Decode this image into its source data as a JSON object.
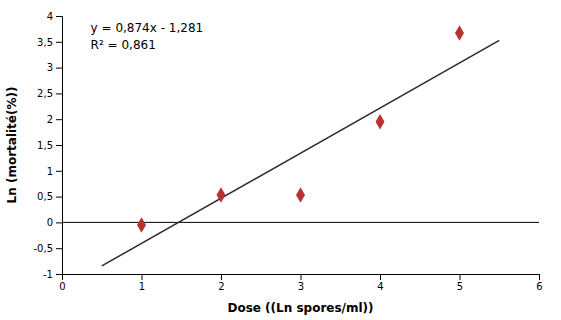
{
  "chart_data": {
    "type": "scatter",
    "xlabel": "Dose ((Ln spores/ml))",
    "ylabel": "Ln (mortalité(%))",
    "series": [
      {
        "type": "scatter",
        "x": [
          1,
          2,
          3,
          4,
          5
        ],
        "values": [
          -0.05,
          0.53,
          0.53,
          1.95,
          3.67
        ],
        "color": "#b83232",
        "marker": "diamond"
      },
      {
        "type": "line",
        "x": [
          0.5,
          5.5
        ],
        "values": [
          -0.844,
          3.526
        ],
        "color": "#2b2b2b",
        "line_style": "solid"
      }
    ],
    "annotations": [
      "y = 0,874x - 1,281",
      "R² = 0,861"
    ],
    "xlim": [
      0,
      6
    ],
    "ylim": [
      -1,
      4
    ],
    "xticks": [
      0,
      1,
      2,
      3,
      4,
      5,
      6
    ],
    "yticks": [
      -1,
      {
        "value": -0.5,
        "label": "-0,5"
      },
      0,
      {
        "value": 0.5,
        "label": "0,5"
      },
      1,
      {
        "value": 1.5,
        "label": "1,5"
      },
      2,
      {
        "value": 2.5,
        "label": "2,5"
      },
      3,
      {
        "value": 3.5,
        "label": "3,5"
      },
      4
    ],
    "grid": false
  }
}
